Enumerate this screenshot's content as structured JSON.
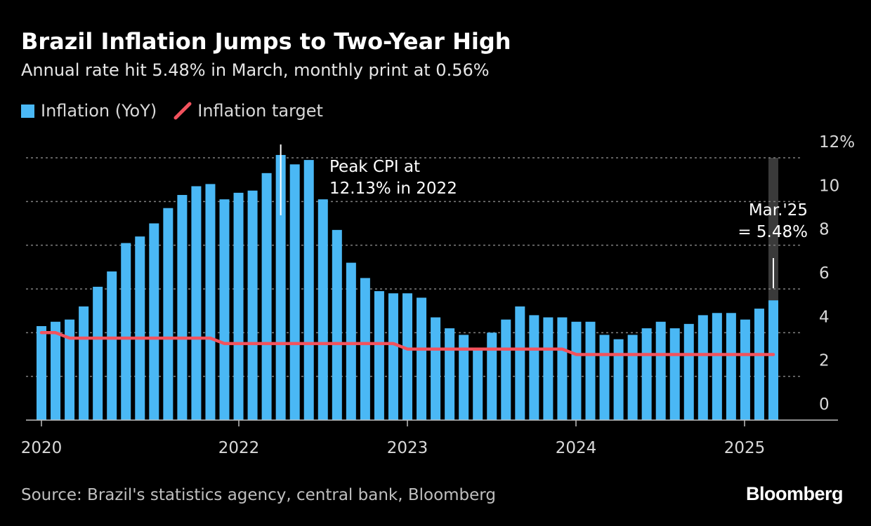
{
  "chart_data": {
    "type": "bar",
    "title": "Brazil Inflation Jumps to Two-Year High",
    "subtitle": "Annual rate hit 5.48% in March, monthly print at 0.56%",
    "legend": {
      "position": "top-left",
      "items": [
        {
          "label": "Inflation (YoY)",
          "kind": "bar",
          "color": "#4ab8f5"
        },
        {
          "label": "Inflation target",
          "kind": "line",
          "color": "#f2525d"
        }
      ]
    },
    "x_ticks": [
      "2020",
      "2022",
      "2023",
      "2024",
      "2025"
    ],
    "y_ticks": [
      "0",
      "2",
      "4",
      "6",
      "8",
      "10",
      "12%"
    ],
    "ylim": [
      0,
      12
    ],
    "grid": "horizontal dotted",
    "series": [
      {
        "name": "Inflation (YoY)",
        "type": "bar",
        "color": "#4ab8f5",
        "values": [
          4.3,
          4.5,
          4.6,
          5.2,
          6.1,
          6.8,
          8.1,
          8.4,
          9.0,
          9.7,
          10.3,
          10.7,
          10.8,
          10.1,
          10.4,
          10.5,
          11.3,
          12.13,
          11.7,
          11.9,
          10.1,
          8.7,
          7.2,
          6.5,
          5.9,
          5.8,
          5.8,
          5.6,
          4.7,
          4.2,
          3.9,
          3.2,
          4.0,
          4.6,
          5.2,
          4.8,
          4.7,
          4.7,
          4.5,
          4.5,
          3.9,
          3.7,
          3.9,
          4.2,
          4.5,
          4.2,
          4.4,
          4.8,
          4.9,
          4.9,
          4.6,
          5.1,
          5.48
        ]
      },
      {
        "name": "Inflation target",
        "type": "line",
        "color": "#f2525d",
        "values": [
          4.0,
          4.0,
          3.75,
          3.75,
          3.75,
          3.75,
          3.75,
          3.75,
          3.75,
          3.75,
          3.75,
          3.75,
          3.75,
          3.5,
          3.5,
          3.5,
          3.5,
          3.5,
          3.5,
          3.5,
          3.5,
          3.5,
          3.5,
          3.5,
          3.5,
          3.5,
          3.25,
          3.25,
          3.25,
          3.25,
          3.25,
          3.25,
          3.25,
          3.25,
          3.25,
          3.25,
          3.25,
          3.25,
          3.0,
          3.0,
          3.0,
          3.0,
          3.0,
          3.0,
          3.0,
          3.0,
          3.0,
          3.0,
          3.0,
          3.0,
          3.0,
          3.0,
          3.0
        ]
      }
    ],
    "annotations": {
      "peak": {
        "line1": "Peak CPI at",
        "line2": "12.13% in 2022"
      },
      "latest": {
        "line1": "Mar.'25",
        "line2": "= 5.48%"
      }
    }
  },
  "colors": {
    "background": "#000000",
    "bar": "#4ab8f5",
    "target_line": "#f2525d",
    "grid": "#808080",
    "axis": "#bfbfbf",
    "highlight": "#3a3a3a"
  },
  "footer": {
    "source": "Source: Brazil's statistics agency, central bank, Bloomberg",
    "brand": "Bloomberg"
  }
}
